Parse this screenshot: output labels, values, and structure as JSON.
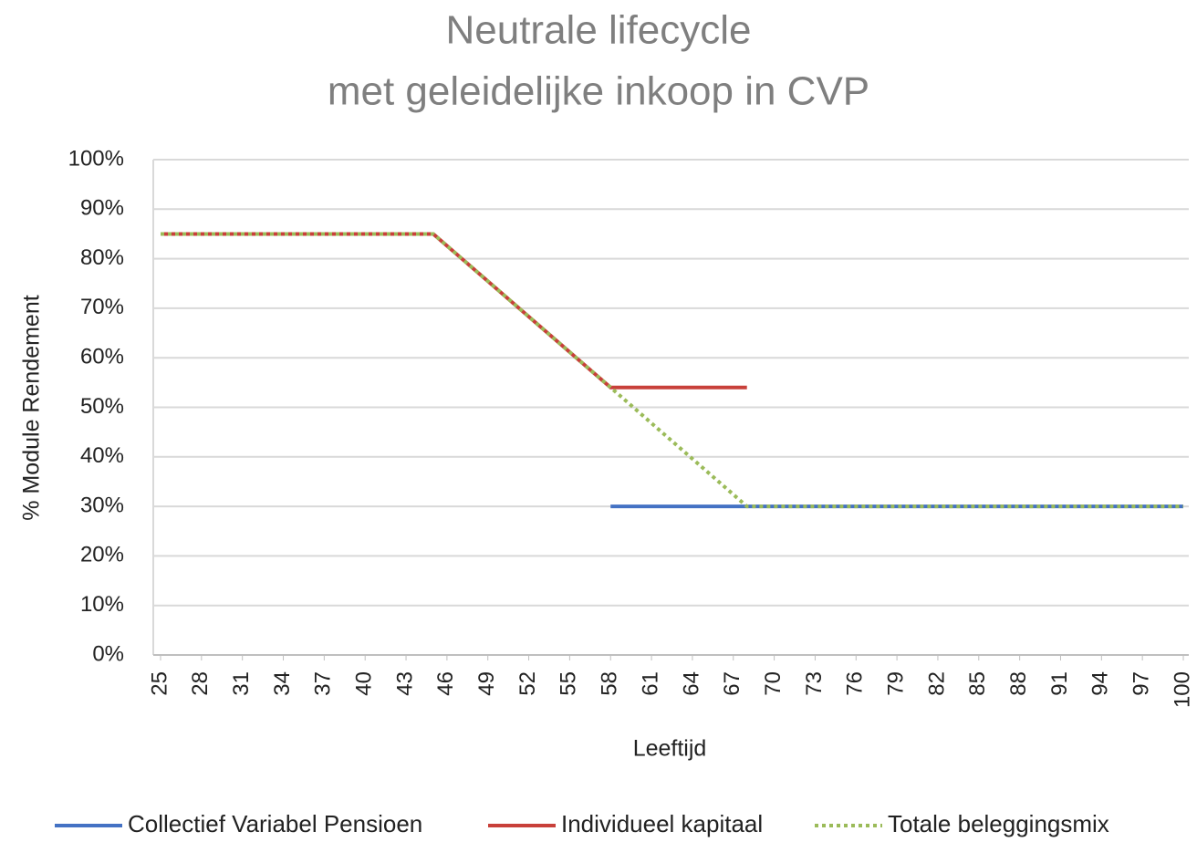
{
  "chart_data": {
    "type": "line",
    "title": [
      "Neutrale lifecycle",
      "met geleidelijke inkoop in CVP"
    ],
    "x_label": "Leeftijd",
    "y_label": "% Module Rendement",
    "x": [
      25,
      45,
      58,
      68,
      100
    ],
    "series": [
      {
        "name": "Collectief Variabel Pensioen",
        "color": "#4472c4",
        "dash": false,
        "values": [
          null,
          null,
          30,
          30,
          30
        ]
      },
      {
        "name": "Individueel kapitaal",
        "color": "#c8403a",
        "dash": false,
        "values": [
          85,
          85,
          54,
          54,
          null
        ]
      },
      {
        "name": "Totale beleggingsmix",
        "color": "#9bbb59",
        "dash": true,
        "values": [
          85,
          85,
          54,
          30,
          30
        ]
      }
    ],
    "xlim": [
      25,
      100
    ],
    "xticks": [
      25,
      28,
      31,
      34,
      37,
      40,
      43,
      46,
      49,
      52,
      55,
      58,
      61,
      64,
      67,
      70,
      73,
      76,
      79,
      82,
      85,
      88,
      91,
      94,
      97,
      100
    ],
    "ylim": [
      0,
      100
    ],
    "yticks": [
      {
        "value": 0,
        "label": "0%"
      },
      {
        "value": 10,
        "label": "10%"
      },
      {
        "value": 20,
        "label": "20%"
      },
      {
        "value": 30,
        "label": "30%"
      },
      {
        "value": 40,
        "label": "40%"
      },
      {
        "value": 50,
        "label": "50%"
      },
      {
        "value": 60,
        "label": "60%"
      },
      {
        "value": 70,
        "label": "70%"
      },
      {
        "value": 80,
        "label": "80%"
      },
      {
        "value": 90,
        "label": "90%"
      },
      {
        "value": 100,
        "label": "100%"
      }
    ],
    "grid": true,
    "legend": "bottom"
  }
}
